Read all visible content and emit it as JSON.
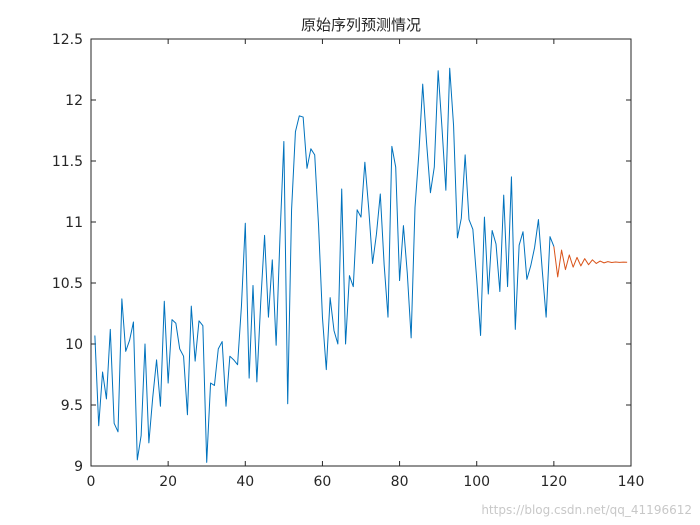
{
  "chart_data": {
    "type": "line",
    "title": "原始序列预测情况",
    "xlabel": "",
    "ylabel": "",
    "xlim": [
      0,
      140
    ],
    "ylim": [
      9,
      12.5
    ],
    "xticks": [
      0,
      20,
      40,
      60,
      80,
      100,
      120,
      140
    ],
    "yticks": [
      9,
      9.5,
      10,
      10.5,
      11,
      11.5,
      12,
      12.5
    ],
    "ytick_labels": [
      "9",
      "9.5",
      "10",
      "10.5",
      "11",
      "11.5",
      "12",
      "12.5"
    ],
    "grid": false,
    "colors": {
      "original": "#0072BD",
      "forecast": "#D95319",
      "axis": "#262626"
    },
    "series": [
      {
        "x_start": 1,
        "values": [
          10.07,
          9.33,
          9.77,
          9.55,
          10.12,
          9.35,
          9.28,
          10.37,
          9.94,
          10.03,
          10.18,
          9.05,
          9.25,
          10.0,
          9.19,
          9.56,
          9.87,
          9.49,
          10.35,
          9.68,
          10.2,
          10.17,
          9.96,
          9.9,
          9.42,
          10.31,
          9.86,
          10.19,
          10.15,
          9.03,
          9.68,
          9.66,
          9.96,
          10.02,
          9.49,
          9.9,
          9.87,
          9.83,
          10.31,
          10.99,
          9.72,
          10.48,
          9.69,
          10.34,
          10.89,
          10.22,
          10.69,
          9.99,
          10.88,
          11.66,
          9.51,
          11.1,
          11.74,
          11.87,
          11.86,
          11.44,
          11.6,
          11.55,
          10.97,
          10.22,
          9.79,
          10.38,
          10.11,
          10.0,
          11.27,
          10.0,
          10.56,
          10.47,
          11.1,
          11.04,
          11.49,
          11.11,
          10.66,
          10.9,
          11.23,
          10.65,
          10.22,
          11.62,
          11.45,
          10.52,
          10.97,
          10.58,
          10.05,
          11.12,
          11.56,
          12.13,
          11.65,
          11.24,
          11.45,
          12.24,
          11.77,
          11.26,
          12.26,
          11.79,
          10.87,
          11.03,
          11.55,
          11.02,
          10.94,
          10.53,
          10.07,
          11.04,
          10.41,
          10.93,
          10.82,
          10.43,
          11.22,
          10.47,
          11.37,
          10.12,
          10.81,
          10.92,
          10.53,
          10.64,
          10.79,
          11.02,
          10.6,
          10.22,
          10.88,
          10.8
        ]
      },
      {
        "x_start": 120,
        "values": [
          10.8,
          10.55,
          10.77,
          10.61,
          10.73,
          10.63,
          10.71,
          10.64,
          10.7,
          10.65,
          10.69,
          10.66,
          10.68,
          10.665,
          10.675,
          10.668,
          10.672,
          10.669,
          10.671,
          10.67
        ]
      }
    ]
  },
  "watermark": "https://blog.csdn.net/qq_41196612"
}
